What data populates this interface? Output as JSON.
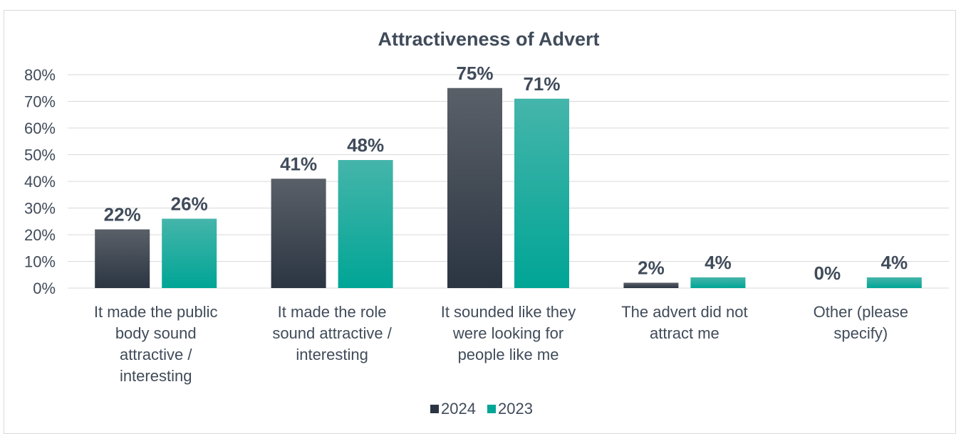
{
  "chart_data": {
    "type": "bar",
    "title": "Attractiveness of Advert",
    "xlabel": "",
    "ylabel": "",
    "ylim": [
      0,
      0.8
    ],
    "yticks": [
      "0%",
      "10%",
      "20%",
      "30%",
      "40%",
      "50%",
      "60%",
      "70%",
      "80%"
    ],
    "categories": [
      [
        "It made the public",
        "body sound",
        "attractive /",
        "interesting"
      ],
      [
        "It made the role",
        "sound attractive /",
        "interesting"
      ],
      [
        "It sounded like they",
        "were looking for",
        "people like me"
      ],
      [
        "The advert did not",
        "attract me"
      ],
      [
        "Other (please",
        "specify)"
      ]
    ],
    "series": [
      {
        "name": "2024",
        "values": [
          0.22,
          0.41,
          0.75,
          0.02,
          0.0
        ],
        "labels": [
          "22%",
          "41%",
          "75%",
          "2%",
          "0%"
        ],
        "color_top": "#5a6068",
        "color_bottom": "#2b3542"
      },
      {
        "name": "2023",
        "values": [
          0.26,
          0.48,
          0.71,
          0.04,
          0.04
        ],
        "labels": [
          "26%",
          "48%",
          "71%",
          "4%",
          "4%"
        ],
        "color_top": "#45b5aa",
        "color_bottom": "#00a596"
      }
    ],
    "grid": true,
    "legend_position": "bottom"
  }
}
